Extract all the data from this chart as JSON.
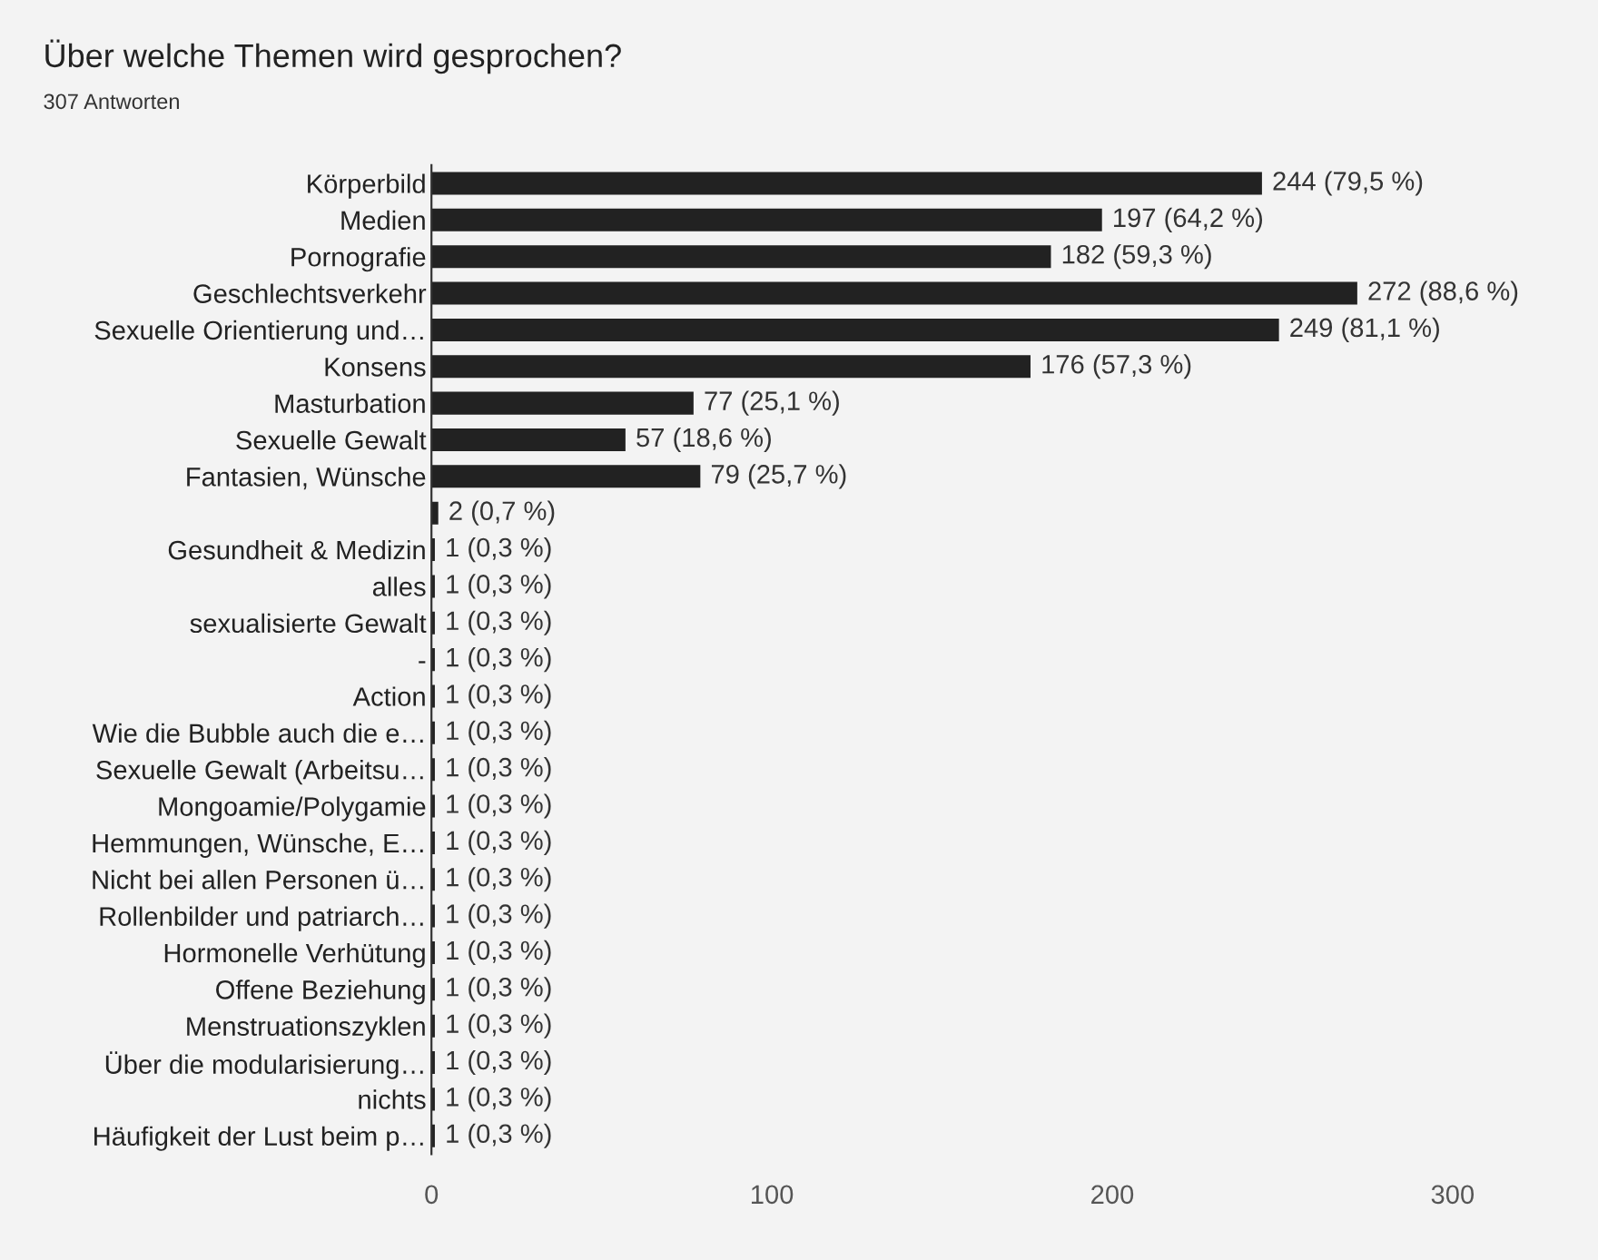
{
  "chart_data": {
    "type": "bar",
    "orientation": "horizontal",
    "title": "Über welche Themen wird gesprochen?",
    "subtitle": "307 Antworten",
    "categories": [
      "Körperbild",
      "Medien",
      "Pornografie",
      "Geschlechtsverkehr",
      "Sexuelle Orientierung und…",
      "Konsens",
      "Masturbation",
      "Sexuelle Gewalt",
      "Fantasien, Wünsche",
      null,
      "Gesundheit & Medizin",
      "alles",
      "sexualisierte Gewalt",
      "-",
      "Action",
      "Wie die Bubble auch die e…",
      "Sexuelle Gewalt (Arbeitsu…",
      "Mongoamie/Polygamie",
      "Hemmungen, Wünsche, E…",
      "Nicht bei allen Personen ü…",
      "Rollenbilder und patriarch…",
      "Hormonelle Verhütung",
      "Offene Beziehung",
      "Menstruationszyklen",
      "Über die modularisierung…",
      "nichts",
      "Häufigkeit der Lust beim p…"
    ],
    "values": [
      244,
      197,
      182,
      272,
      249,
      176,
      77,
      57,
      79,
      2,
      1,
      1,
      1,
      1,
      1,
      1,
      1,
      1,
      1,
      1,
      1,
      1,
      1,
      1,
      1,
      1,
      1
    ],
    "value_labels": [
      "244 (79,5 %)",
      "197 (64,2 %)",
      "182 (59,3 %)",
      "272 (88,6 %)",
      "249 (81,1 %)",
      "176 (57,3 %)",
      "77 (25,1 %)",
      "57 (18,6 %)",
      "79 (25,7 %)",
      "2 (0,7 %)",
      "1 (0,3 %)",
      "1 (0,3 %)",
      "1 (0,3 %)",
      "1 (0,3 %)",
      "1 (0,3 %)",
      "1 (0,3 %)",
      "1 (0,3 %)",
      "1 (0,3 %)",
      "1 (0,3 %)",
      "1 (0,3 %)",
      "1 (0,3 %)",
      "1 (0,3 %)",
      "1 (0,3 %)",
      "1 (0,3 %)",
      "1 (0,3 %)",
      "1 (0,3 %)",
      "1 (0,3 %)"
    ],
    "color": "#222222",
    "xlim": [
      0,
      300
    ],
    "xticks": [
      0,
      100,
      200,
      300
    ],
    "grid": false
  }
}
